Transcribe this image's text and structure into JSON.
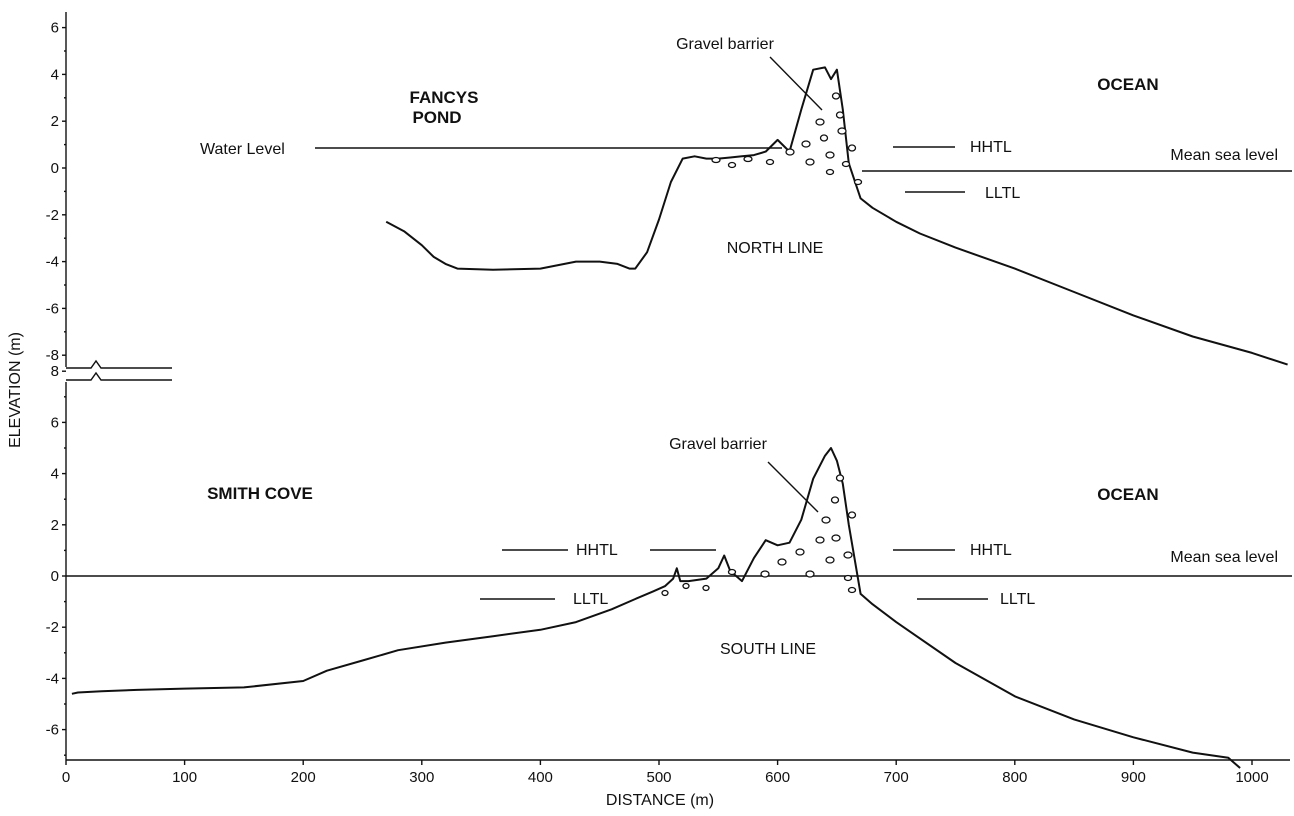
{
  "chart_data": [
    {
      "type": "line",
      "panel": "top",
      "ylim": [
        -8.5,
        7
      ],
      "y_ticks": [
        6,
        4,
        2,
        0,
        -2,
        -4,
        -6,
        -8
      ],
      "labels": {
        "left": [
          "FANCYS",
          "POND"
        ],
        "ocean": "OCEAN",
        "water_level": "Water Level",
        "gravel": "Gravel barrier",
        "hhtl": "HHTL",
        "lltl": "LLTL",
        "msl": "Mean sea level",
        "line_name": "NORTH LINE"
      },
      "levels": {
        "water_level": 0.8,
        "hhtl": 0.9,
        "lltl": -1.0,
        "mean_sea_level": -0.1
      },
      "series": [
        {
          "x": [
            270,
            285,
            300,
            310,
            320,
            330,
            360,
            400,
            430,
            450,
            465,
            475,
            480,
            490,
            500,
            510,
            520,
            530,
            540,
            550,
            560,
            570,
            580,
            590,
            600,
            610,
            620,
            630,
            640,
            645,
            650,
            655,
            660,
            670,
            680,
            700,
            720,
            750,
            800,
            850,
            900,
            950,
            1000,
            1030
          ],
          "y": [
            -2.3,
            -2.7,
            -3.3,
            -3.8,
            -4.1,
            -4.3,
            -4.35,
            -4.3,
            -4.0,
            -4.0,
            -4.1,
            -4.3,
            -4.3,
            -3.6,
            -2.2,
            -0.6,
            0.4,
            0.5,
            0.4,
            0.4,
            0.45,
            0.5,
            0.55,
            0.7,
            1.2,
            0.7,
            2.5,
            4.2,
            4.3,
            3.8,
            4.2,
            2.5,
            0.2,
            -1.3,
            -1.7,
            -2.3,
            -2.8,
            -3.4,
            -4.3,
            -5.3,
            -6.3,
            -7.2,
            -7.9,
            -8.4
          ]
        }
      ]
    },
    {
      "type": "line",
      "panel": "bottom",
      "ylim": [
        -7.8,
        8.3
      ],
      "y_ticks": [
        8,
        6,
        4,
        2,
        0,
        -2,
        -4,
        -6
      ],
      "labels": {
        "left": "SMITH COVE",
        "ocean": "OCEAN",
        "gravel": "Gravel barrier",
        "hhtl_left": "HHTL",
        "lltl_left": "LLTL",
        "hhtl_right": "HHTL",
        "lltl_right": "LLTL",
        "msl": "Mean sea level",
        "line_name": "SOUTH LINE"
      },
      "levels": {
        "hhtl": 1.0,
        "lltl": -0.9,
        "mean_sea_level": 0
      },
      "series": [
        {
          "x": [
            5,
            10,
            30,
            60,
            100,
            150,
            200,
            220,
            250,
            280,
            320,
            360,
            400,
            430,
            460,
            480,
            495,
            505,
            512,
            515,
            518,
            525,
            540,
            550,
            555,
            560,
            570,
            580,
            590,
            600,
            610,
            620,
            630,
            640,
            645,
            650,
            655,
            660,
            670,
            680,
            700,
            750,
            800,
            850,
            900,
            950,
            980,
            990
          ],
          "y": [
            -4.6,
            -4.55,
            -4.5,
            -4.45,
            -4.4,
            -4.35,
            -4.1,
            -3.7,
            -3.3,
            -2.9,
            -2.6,
            -2.35,
            -2.1,
            -1.8,
            -1.3,
            -0.9,
            -0.6,
            -0.4,
            -0.1,
            0.3,
            -0.2,
            -0.2,
            -0.1,
            0.3,
            0.8,
            0.2,
            -0.2,
            0.7,
            1.4,
            1.2,
            1.3,
            2.2,
            3.8,
            4.7,
            5.0,
            4.5,
            3.6,
            2.0,
            -0.7,
            -1.1,
            -1.8,
            -3.4,
            -4.7,
            -5.6,
            -6.3,
            -6.9,
            -7.1,
            -7.5
          ]
        }
      ]
    }
  ],
  "axes": {
    "x_label": "DISTANCE (m)",
    "y_label": "ELEVATION (m)",
    "x_ticks": [
      0,
      100,
      200,
      300,
      400,
      500,
      600,
      700,
      800,
      900,
      1000
    ],
    "xlim": [
      0,
      1030
    ]
  }
}
